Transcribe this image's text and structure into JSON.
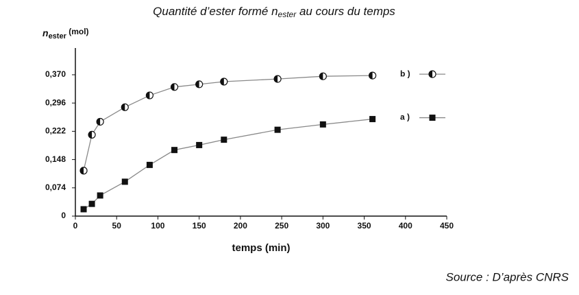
{
  "chart_data": {
    "type": "line",
    "title": [
      "Quantité d’ester formé n",
      "ester",
      " au cours du temps"
    ],
    "y_label": [
      "n",
      "ester",
      " (mol)"
    ],
    "x_label": "temps (min)",
    "source": "Source : D’après CNRS",
    "x": [
      10,
      20,
      30,
      60,
      90,
      120,
      150,
      180,
      245,
      300,
      360
    ],
    "series": [
      {
        "name": "b )",
        "color": "#888888",
        "marker": "half-circle",
        "values": [
          0.119,
          0.213,
          0.247,
          0.285,
          0.316,
          0.338,
          0.345,
          0.352,
          0.359,
          0.366,
          0.368
        ]
      },
      {
        "name": "a )",
        "color": "#888888",
        "marker": "square",
        "values": [
          0.018,
          0.032,
          0.054,
          0.09,
          0.134,
          0.173,
          0.186,
          0.2,
          0.226,
          0.24,
          0.254
        ]
      }
    ],
    "xlim": [
      0,
      450
    ],
    "xticks": [
      0,
      50,
      100,
      150,
      200,
      250,
      300,
      350,
      400,
      450
    ],
    "ylim": [
      0,
      0.44
    ],
    "yticks": [
      0,
      {
        "value": 0.074,
        "label": "0,074"
      },
      {
        "value": 0.148,
        "label": "0,148"
      },
      {
        "value": 0.222,
        "label": "0,222"
      },
      {
        "value": 0.296,
        "label": "0,296"
      },
      {
        "value": 0.37,
        "label": "0,370"
      }
    ],
    "grid": false
  }
}
